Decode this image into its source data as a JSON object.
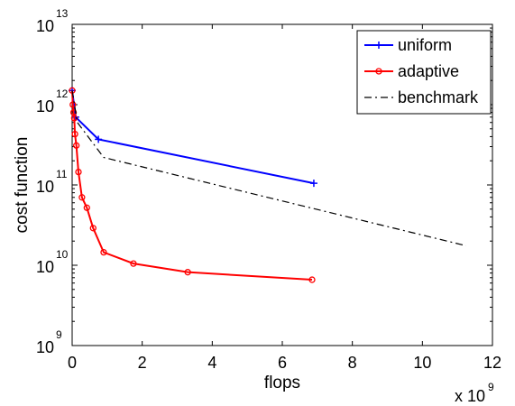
{
  "chart_data": {
    "type": "line",
    "xlabel": "flops",
    "ylabel": "cost function",
    "x_multiplier_label": "x 10",
    "x_multiplier_exponent": "9",
    "x_scale_factor": 1000000000,
    "xlim": [
      0,
      12
    ],
    "ylim_log10": [
      9,
      13
    ],
    "y_scale": "log",
    "x_ticks": [
      0,
      2,
      4,
      6,
      8,
      10,
      12
    ],
    "y_ticks": [
      {
        "base": "10",
        "exp": "9",
        "value": 1000000000.0
      },
      {
        "base": "10",
        "exp": "10",
        "value": 10000000000.0
      },
      {
        "base": "10",
        "exp": "11",
        "value": 100000000000.0
      },
      {
        "base": "10",
        "exp": "12",
        "value": 1000000000000.0
      },
      {
        "base": "10",
        "exp": "13",
        "value": 10000000000000.0
      }
    ],
    "grid": false,
    "legend_position": "top-right",
    "series": [
      {
        "name": "uniform",
        "color": "#0000ff",
        "style": "solid",
        "marker": "plus",
        "x": [
          0.0,
          0.1,
          0.75,
          6.9
        ],
        "y": [
          1500000000000.0,
          700000000000.0,
          370000000000.0,
          105000000000.0
        ]
      },
      {
        "name": "adaptive",
        "color": "#ff0000",
        "style": "solid",
        "marker": "circle",
        "x": [
          0.0,
          0.02,
          0.04,
          0.06,
          0.08,
          0.12,
          0.18,
          0.28,
          0.42,
          0.6,
          0.9,
          1.75,
          3.3,
          6.85
        ],
        "y": [
          1500000000000.0,
          1000000000000.0,
          800000000000.0,
          680000000000.0,
          430000000000.0,
          310000000000.0,
          145000000000.0,
          70000000000.0,
          52000000000.0,
          29000000000.0,
          14500000000.0,
          10500000000.0,
          8200000000.0,
          6600000000.0
        ]
      },
      {
        "name": "benchmark",
        "color": "#000000",
        "style": "dashdot",
        "marker": "none",
        "x": [
          0.0,
          0.15,
          0.9,
          11.25
        ],
        "y": [
          1500000000000.0,
          600000000000.0,
          220000000000.0,
          17500000000.0
        ]
      }
    ]
  }
}
